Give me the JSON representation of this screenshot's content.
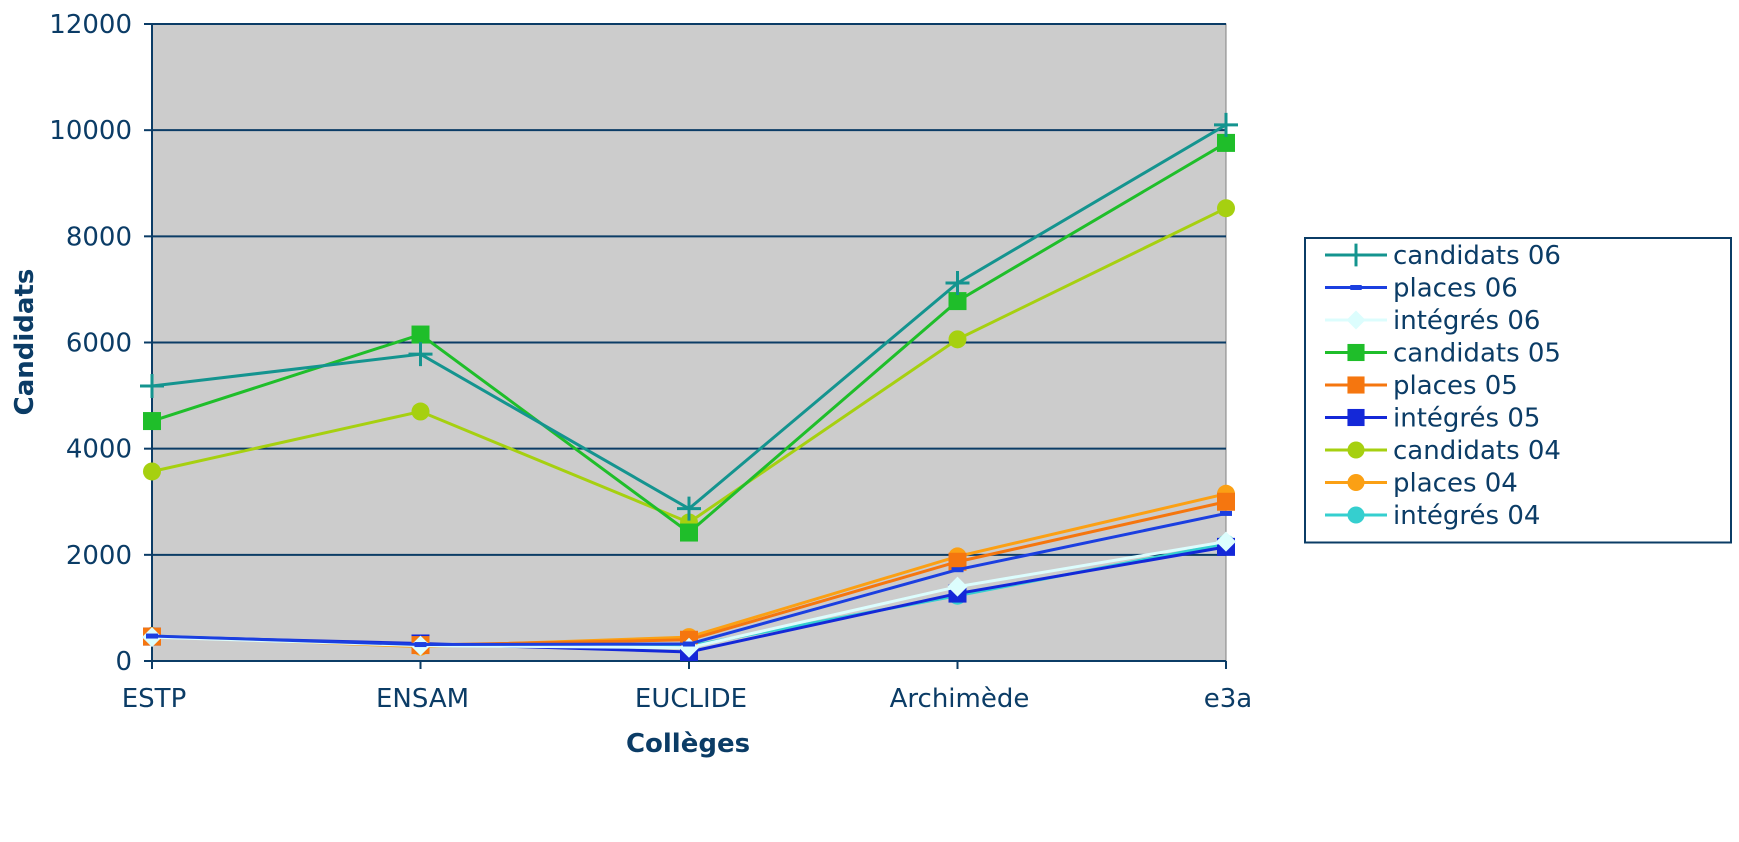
{
  "chart_data": {
    "type": "line",
    "title": "",
    "xlabel": "Collèges",
    "ylabel": "Candidats",
    "categories": [
      "ESTP",
      "ENSAM",
      "EUCLIDE",
      "Archimède",
      "e3a"
    ],
    "ylim": [
      0,
      12000
    ],
    "yticks": [
      "0",
      "2000",
      "4000",
      "6000",
      "8000",
      "10000",
      "12000"
    ],
    "grid": true,
    "legend_position": "right",
    "plot_background": "#cccccc",
    "grid_color": "#0b3c66",
    "series": [
      {
        "name": "candidats 06",
        "color": "#14948f",
        "marker": "plus",
        "values": [
          5180,
          5780,
          2870,
          7120,
          10100
        ]
      },
      {
        "name": "places 06",
        "color": "#1b3fe0",
        "marker": "dash",
        "values": [
          470,
          310,
          320,
          1720,
          2780
        ]
      },
      {
        "name": "intégrés 06",
        "color": "#dcfdfd",
        "marker": "diamond",
        "values": [
          450,
          290,
          250,
          1400,
          2250
        ]
      },
      {
        "name": "candidats 05",
        "color": "#1fbe2a",
        "marker": "square",
        "values": [
          4520,
          6150,
          2420,
          6780,
          9760
        ]
      },
      {
        "name": "places 05",
        "color": "#f5760f",
        "marker": "square",
        "values": [
          460,
          300,
          400,
          1870,
          3000
        ]
      },
      {
        "name": "intégrés 05",
        "color": "#1428d8",
        "marker": "square",
        "values": [
          460,
          330,
          170,
          1270,
          2150
        ]
      },
      {
        "name": "candidats 04",
        "color": "#a6d010",
        "marker": "circle",
        "values": [
          3570,
          4700,
          2610,
          6060,
          8530
        ]
      },
      {
        "name": "places 04",
        "color": "#fba014",
        "marker": "circle",
        "values": [
          470,
          270,
          450,
          1970,
          3150
        ]
      },
      {
        "name": "intégrés 04",
        "color": "#35cfcf",
        "marker": "circle",
        "values": [
          470,
          300,
          280,
          1230,
          2210
        ]
      }
    ]
  }
}
